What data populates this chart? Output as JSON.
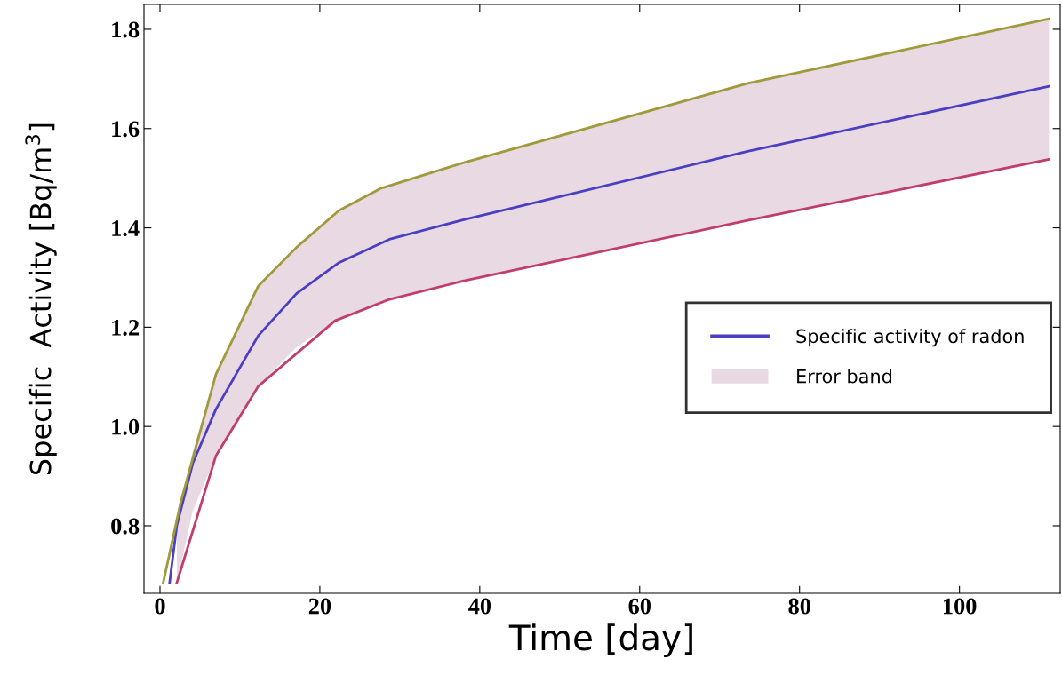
{
  "chart_data": {
    "type": "line",
    "xlabel": "Time [day]",
    "ylabel": "Specific  Activity [Bq/m$^{3}$]",
    "xlim": [
      -2,
      112.6
    ],
    "ylim": [
      0.664,
      1.85
    ],
    "xticks": [
      0,
      20,
      40,
      60,
      80,
      100
    ],
    "yticks": [
      0.8,
      {
        "value": 1,
        "label": "1.0"
      },
      1.2,
      1.4,
      1.6,
      1.8
    ],
    "grid": false,
    "legend": "right",
    "marker": "none",
    "line_style": "solid",
    "series": [
      {
        "name": "Specific activity of radon",
        "color": "#4a3fc0",
        "x": [
          1.2,
          2.1,
          4.1,
          7.0,
          12.3,
          17.1,
          22.4,
          28.7,
          37.9,
          73.5,
          111.2
        ],
        "values": [
          0.685,
          0.8,
          0.926,
          1.035,
          1.183,
          1.268,
          1.33,
          1.377,
          1.416,
          1.554,
          1.685
        ],
        "lower": [
          null,
          0.685,
          0.83,
          0.941,
          1.081,
          1.16,
          1.218,
          1.256,
          1.293,
          1.415,
          1.538
        ],
        "upper": [
          null,
          0.81,
          0.95,
          1.105,
          1.283,
          1.361,
          1.435,
          1.485,
          1.531,
          1.691,
          1.821
        ]
      },
      {
        "type": "area",
        "name": "Error band",
        "color": "#e8d9e3"
      },
      {
        "color": "#a09a3c",
        "x": [
          0.4,
          2.6,
          7.0,
          12.3,
          17.1,
          22.4,
          27.7,
          37.9,
          73.5,
          111.2
        ],
        "values": [
          0.685,
          0.848,
          1.105,
          1.283,
          1.361,
          1.435,
          1.48,
          1.531,
          1.691,
          1.821
        ]
      },
      {
        "color": "#c03d6c",
        "x": [
          2.1,
          7.0,
          12.3,
          21.9,
          28.7,
          37.9,
          73.5,
          111.2
        ],
        "values": [
          0.685,
          0.941,
          1.081,
          1.213,
          1.256,
          1.293,
          1.415,
          1.538
        ]
      }
    ]
  }
}
